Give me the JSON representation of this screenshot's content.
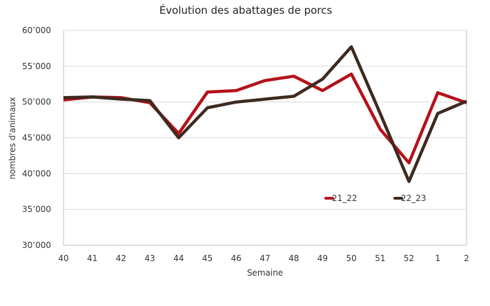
{
  "chart_data": {
    "type": "line",
    "title": "Évolution des abattages de porcs",
    "xlabel": "Semaine",
    "ylabel": "nombres d'animaux",
    "categories": [
      "40",
      "41",
      "42",
      "43",
      "44",
      "45",
      "46",
      "47",
      "48",
      "49",
      "50",
      "51",
      "52",
      "1",
      "2"
    ],
    "ylim": [
      30000,
      60000
    ],
    "yticks": [
      {
        "value": 30000,
        "label": "30’000"
      },
      {
        "value": 35000,
        "label": "35’000"
      },
      {
        "value": 40000,
        "label": "40’000"
      },
      {
        "value": 45000,
        "label": "45’000"
      },
      {
        "value": 50000,
        "label": "50’000"
      },
      {
        "value": 55000,
        "label": "55’000"
      },
      {
        "value": 60000,
        "label": "60’000"
      }
    ],
    "grid": true,
    "legend_position": "bottom-right",
    "series": [
      {
        "name": "21_22",
        "color": "#b5121b",
        "values": [
          50300,
          50700,
          50600,
          49900,
          45600,
          51400,
          51600,
          53000,
          53600,
          51600,
          53900,
          46200,
          41500,
          51300,
          49900
        ]
      },
      {
        "name": "22_23",
        "color": "#3d2a20",
        "values": [
          50600,
          50700,
          50400,
          50200,
          45000,
          49200,
          50000,
          50400,
          50800,
          53200,
          57700,
          48400,
          38900,
          48400,
          50100
        ]
      }
    ]
  }
}
